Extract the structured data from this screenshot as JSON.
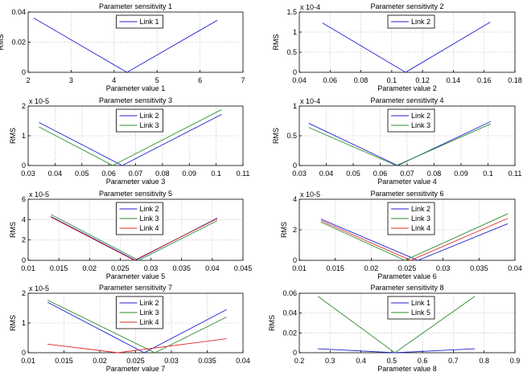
{
  "colors": {
    "Link 1": "#2020d0",
    "Link 2": "#2020d0",
    "Link 3": "#2e8b2e",
    "Link 4": "#e02828",
    "Link 5": "#2e8b2e"
  },
  "chart_data": [
    {
      "type": "line",
      "title": "Parameter sensitivity 1",
      "xlabel": "Parameter value 1",
      "ylabel": "RMS",
      "y_exponent": "",
      "xlim": [
        2,
        7
      ],
      "ylim": [
        0,
        0.04
      ],
      "xticks": [
        "2",
        "3",
        "4",
        "5",
        "6",
        "7"
      ],
      "yticks": [
        "0",
        "0.02",
        "0.04"
      ],
      "grid": true,
      "legend": "top-center",
      "series": [
        {
          "name": "Link 1",
          "x": [
            2.13,
            4.3,
            6.4
          ],
          "y": [
            0.036,
            0,
            0.0345
          ]
        }
      ]
    },
    {
      "type": "line",
      "title": "Parameter sensitivity 2",
      "xlabel": "Parameter value 2",
      "ylabel": "RMS",
      "y_exponent": "x 10-4",
      "xlim": [
        0.04,
        0.18
      ],
      "ylim": [
        0,
        1.5
      ],
      "xticks": [
        "0.04",
        "0.06",
        "0.08",
        "0.1",
        "0.12",
        "0.14",
        "0.16",
        "0.18"
      ],
      "yticks": [
        "0",
        "0.5",
        "1",
        "1.5"
      ],
      "grid": true,
      "legend": "top-center",
      "series": [
        {
          "name": "Link 2",
          "x": [
            0.055,
            0.109,
            0.164
          ],
          "y": [
            1.23,
            0,
            1.25
          ]
        }
      ]
    },
    {
      "type": "line",
      "title": "Parameter sensitivity 3",
      "xlabel": "Parameter value 3",
      "ylabel": "RMS",
      "y_exponent": "x 10-5",
      "xlim": [
        0.03,
        0.11
      ],
      "ylim": [
        0,
        2
      ],
      "xticks": [
        "0.03",
        "0.04",
        "0.05",
        "0.06",
        "0.07",
        "0.08",
        "0.09",
        "0.1",
        "0.11"
      ],
      "yticks": [
        "0",
        "1",
        "2"
      ],
      "grid": true,
      "legend": "top-center",
      "series": [
        {
          "name": "Link 2",
          "x": [
            0.034,
            0.065,
            0.102
          ],
          "y": [
            1.45,
            0,
            1.72
          ]
        },
        {
          "name": "Link 3",
          "x": [
            0.034,
            0.0615,
            0.102
          ],
          "y": [
            1.3,
            0,
            1.88
          ]
        }
      ]
    },
    {
      "type": "line",
      "title": "Parameter sensitivity 4",
      "xlabel": "Parameter value 4",
      "ylabel": "RMS",
      "y_exponent": "x 10-4",
      "xlim": [
        0.03,
        0.11
      ],
      "ylim": [
        0,
        1
      ],
      "xticks": [
        "0.03",
        "0.04",
        "0.05",
        "0.06",
        "0.07",
        "0.08",
        "0.09",
        "0.1",
        "0.11"
      ],
      "yticks": [
        "0",
        "0.5",
        "1"
      ],
      "grid": true,
      "legend": "top-center",
      "series": [
        {
          "name": "Link 2",
          "x": [
            0.0335,
            0.0665,
            0.101
          ],
          "y": [
            0.71,
            0,
            0.74
          ]
        },
        {
          "name": "Link 3",
          "x": [
            0.0335,
            0.066,
            0.101
          ],
          "y": [
            0.64,
            0,
            0.7
          ]
        }
      ]
    },
    {
      "type": "line",
      "title": "Parameter sensitivity 5",
      "xlabel": "Parameter value 5",
      "ylabel": "RMS",
      "y_exponent": "x 10-5",
      "xlim": [
        0.01,
        0.045
      ],
      "ylim": [
        0,
        6
      ],
      "xticks": [
        "0.01",
        "0.015",
        "0.02",
        "0.025",
        "0.03",
        "0.035",
        "0.04",
        "0.045"
      ],
      "yticks": [
        "0",
        "2",
        "4",
        "6"
      ],
      "grid": true,
      "legend": "top-center",
      "series": [
        {
          "name": "Link 2",
          "x": [
            0.0137,
            0.0275,
            0.0408
          ],
          "y": [
            4.3,
            0,
            4.15
          ]
        },
        {
          "name": "Link 3",
          "x": [
            0.0137,
            0.028,
            0.0408
          ],
          "y": [
            4.5,
            0,
            3.9
          ]
        },
        {
          "name": "Link 4",
          "x": [
            0.0137,
            0.0273,
            0.0408
          ],
          "y": [
            4.25,
            0,
            4.1
          ]
        }
      ]
    },
    {
      "type": "line",
      "title": "Parameter sensitivity 6",
      "xlabel": "Parameter value 6",
      "ylabel": "RMS",
      "y_exponent": "x 10-5",
      "xlim": [
        0.01,
        0.04
      ],
      "ylim": [
        0,
        4
      ],
      "xticks": [
        "0.01",
        "0.015",
        "0.02",
        "0.025",
        "0.03",
        "0.035",
        "0.04"
      ],
      "yticks": [
        "0",
        "2",
        "4"
      ],
      "grid": true,
      "legend": "top-center",
      "series": [
        {
          "name": "Link 2",
          "x": [
            0.013,
            0.0265,
            0.039
          ],
          "y": [
            2.7,
            0,
            2.4
          ]
        },
        {
          "name": "Link 3",
          "x": [
            0.013,
            0.0247,
            0.039
          ],
          "y": [
            2.5,
            0,
            3.05
          ]
        },
        {
          "name": "Link 4",
          "x": [
            0.013,
            0.0255,
            0.039
          ],
          "y": [
            2.6,
            0,
            2.75
          ]
        }
      ]
    },
    {
      "type": "line",
      "title": "Parameter sensitivity 7",
      "xlabel": "Parameter value 7",
      "ylabel": "RMS",
      "y_exponent": "x 10-5",
      "xlim": [
        0.01,
        0.04
      ],
      "ylim": [
        0,
        2
      ],
      "xticks": [
        "0.01",
        "0.015",
        "0.02",
        "0.025",
        "0.03",
        "0.035",
        "0.04"
      ],
      "yticks": [
        "0",
        "1",
        "2"
      ],
      "grid": true,
      "legend": "top-center",
      "series": [
        {
          "name": "Link 2",
          "x": [
            0.0127,
            0.0262,
            0.0377
          ],
          "y": [
            1.7,
            0,
            1.45
          ]
        },
        {
          "name": "Link 3",
          "x": [
            0.0127,
            0.0277,
            0.0377
          ],
          "y": [
            1.77,
            0,
            1.2
          ]
        },
        {
          "name": "Link 4",
          "x": [
            0.0127,
            0.0225,
            0.0377
          ],
          "y": [
            0.29,
            0,
            0.47
          ]
        }
      ]
    },
    {
      "type": "line",
      "title": "Parameter sensitivity 8",
      "xlabel": "Parameter value 8",
      "ylabel": "RMS",
      "y_exponent": "",
      "xlim": [
        0.2,
        0.9
      ],
      "ylim": [
        0,
        0.06
      ],
      "xticks": [
        "0.2",
        "0.3",
        "0.4",
        "0.5",
        "0.6",
        "0.7",
        "0.8",
        "0.9"
      ],
      "yticks": [
        "0",
        "0.02",
        "0.04",
        "0.06"
      ],
      "grid": true,
      "legend": "top-center",
      "series": [
        {
          "name": "Link 1",
          "x": [
            0.26,
            0.51,
            0.77
          ],
          "y": [
            0.004,
            0,
            0.004
          ]
        },
        {
          "name": "Link 5",
          "x": [
            0.26,
            0.51,
            0.77
          ],
          "y": [
            0.057,
            0,
            0.057
          ]
        }
      ]
    }
  ]
}
